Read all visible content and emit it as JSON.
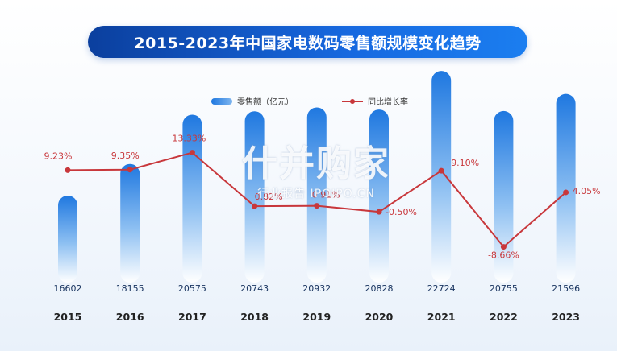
{
  "title": "2015-2023年中国家电数码零售额规模变化趋势",
  "legend": {
    "bar_label": "零售额（亿元）",
    "line_label": "同比增长率"
  },
  "watermark": {
    "main": "什并购家",
    "sub": "行业报告 IPOIPO.CN"
  },
  "colors": {
    "bar_top": "#1f78e0",
    "bar_bottom": "#ffffff",
    "line": "#c8373b",
    "title_bg": "#1565d8"
  },
  "chart_data": {
    "type": "bar",
    "categories": [
      "2015",
      "2016",
      "2017",
      "2018",
      "2019",
      "2020",
      "2021",
      "2022",
      "2023"
    ],
    "series": [
      {
        "name": "零售额（亿元）",
        "type": "bar",
        "values": [
          16602,
          18155,
          20575,
          20743,
          20932,
          20828,
          22724,
          20755,
          21596
        ],
        "labels": [
          "16602",
          "18155",
          "20575",
          "20743",
          "20932",
          "20828",
          "22724",
          "20755",
          "21596"
        ]
      },
      {
        "name": "同比增长率",
        "type": "line",
        "values": [
          9.23,
          9.35,
          13.33,
          0.82,
          0.91,
          -0.5,
          9.1,
          -8.66,
          4.05
        ],
        "labels": [
          "9.23%",
          "9.35%",
          "13.33%",
          "0.82%",
          "0.91%",
          "-0.50%",
          "9.10%",
          "-8.66%",
          "4.05%"
        ]
      }
    ],
    "legend_position": "top",
    "grid": false
  }
}
